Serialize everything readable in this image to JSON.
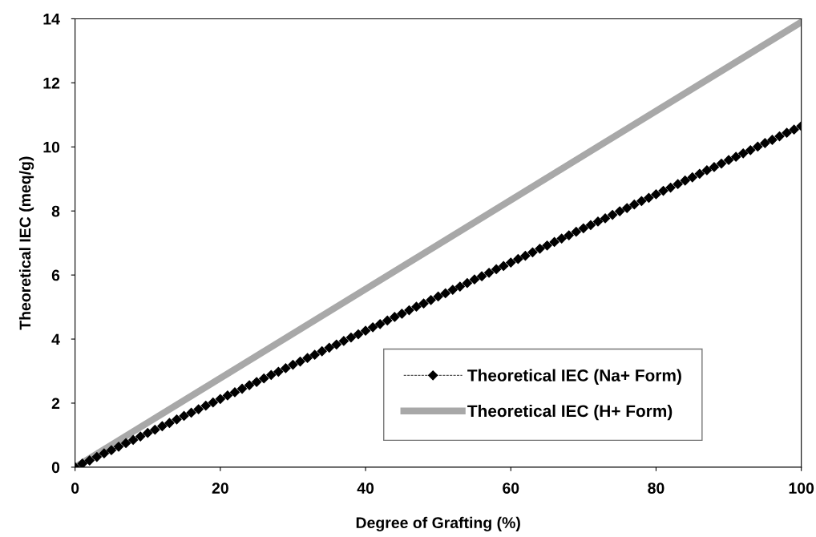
{
  "chart_data": {
    "type": "line",
    "xlabel": "Degree of Grafting (%)",
    "ylabel": "Theoretical IEC (meq/g)",
    "xlim": [
      0,
      100
    ],
    "xticks": [
      0,
      20,
      40,
      60,
      80,
      100
    ],
    "ylim": [
      0,
      14
    ],
    "yticks": [
      0,
      2,
      4,
      6,
      8,
      10,
      12,
      14
    ],
    "grid": false,
    "legend": "bottom right",
    "series": [
      {
        "name": "Theoretical IEC (Na+ Form)",
        "color": "#000000",
        "marker": "diamond",
        "line_style": "dashed",
        "x": [
          0,
          1,
          2,
          3,
          4,
          5,
          6,
          7,
          8,
          9,
          10,
          11,
          12,
          13,
          14,
          15,
          16,
          17,
          18,
          19,
          20,
          21,
          22,
          23,
          24,
          25,
          26,
          27,
          28,
          29,
          30,
          31,
          32,
          33,
          34,
          35,
          36,
          37,
          38,
          39,
          40,
          41,
          42,
          43,
          44,
          45,
          46,
          47,
          48,
          49,
          50,
          51,
          52,
          53,
          54,
          55,
          56,
          57,
          58,
          59,
          60,
          61,
          62,
          63,
          64,
          65,
          66,
          67,
          68,
          69,
          70,
          71,
          72,
          73,
          74,
          75,
          76,
          77,
          78,
          79,
          80,
          81,
          82,
          83,
          84,
          85,
          86,
          87,
          88,
          89,
          90,
          91,
          92,
          93,
          94,
          95,
          96,
          97,
          98,
          99,
          100
        ],
        "values": [
          0,
          0.11,
          0.21,
          0.32,
          0.43,
          0.53,
          0.64,
          0.75,
          0.85,
          0.96,
          1.07,
          1.17,
          1.28,
          1.38,
          1.49,
          1.6,
          1.7,
          1.81,
          1.92,
          2.02,
          2.13,
          2.24,
          2.34,
          2.45,
          2.56,
          2.66,
          2.77,
          2.88,
          2.98,
          3.09,
          3.2,
          3.3,
          3.41,
          3.51,
          3.62,
          3.73,
          3.83,
          3.94,
          4.05,
          4.15,
          4.26,
          4.37,
          4.47,
          4.58,
          4.69,
          4.79,
          4.9,
          5.01,
          5.11,
          5.22,
          5.33,
          5.43,
          5.54,
          5.64,
          5.75,
          5.86,
          5.96,
          6.07,
          6.18,
          6.28,
          6.39,
          6.5,
          6.6,
          6.71,
          6.82,
          6.92,
          7.03,
          7.14,
          7.24,
          7.35,
          7.46,
          7.56,
          7.67,
          7.77,
          7.88,
          7.99,
          8.09,
          8.2,
          8.31,
          8.41,
          8.52,
          8.63,
          8.73,
          8.84,
          8.95,
          9.05,
          9.16,
          9.27,
          9.37,
          9.48,
          9.59,
          9.69,
          9.8,
          9.9,
          10.01,
          10.12,
          10.22,
          10.33,
          10.44,
          10.54,
          10.65
        ]
      },
      {
        "name": "Theoretical IEC (H+ Form)",
        "color": "#a8a8a8",
        "marker": "none",
        "line_style": "solid",
        "x": [
          0,
          100
        ],
        "values": [
          0,
          13.9
        ]
      }
    ]
  }
}
